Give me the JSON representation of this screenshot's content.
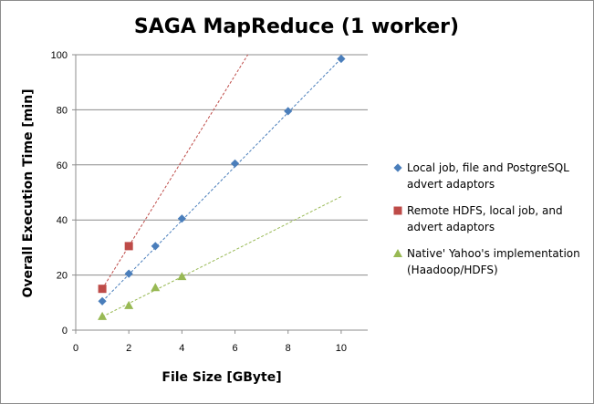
{
  "chart_data": {
    "type": "scatter",
    "title": "SAGA MapReduce (1 worker)",
    "xlabel": "File Size [GByte]",
    "ylabel": "Overall Execution Time [min]",
    "xlim": [
      0,
      11
    ],
    "ylim": [
      0,
      100
    ],
    "xticks": [
      "0",
      "2",
      "4",
      "6",
      "8",
      "10"
    ],
    "yticks": [
      "0",
      "20",
      "40",
      "60",
      "80",
      "100"
    ],
    "grid": "horizontal",
    "legend_position": "right",
    "trendlines": "dashed linear",
    "series": [
      {
        "name": "Local job, file and PostgreSQL advert adaptors",
        "legend_lines": [
          "Local job, file and PostgreSQL",
          "advert adaptors"
        ],
        "marker": "diamond",
        "color": "#4a7ebb",
        "x": [
          1,
          2,
          3,
          4,
          6,
          8,
          10
        ],
        "y": [
          10.5,
          20.5,
          30.5,
          40.5,
          60.5,
          79.5,
          98.5
        ],
        "trend": {
          "slope": 9.8,
          "intercept": 0.6
        }
      },
      {
        "name": "Remote HDFS, local job, and advert adaptors",
        "legend_lines": [
          "Remote HDFS, local job, and",
          "advert adaptors"
        ],
        "marker": "square",
        "color": "#be4b48",
        "x": [
          1,
          2
        ],
        "y": [
          15,
          30.5
        ],
        "trend": {
          "slope": 15.5,
          "intercept": -0.5
        }
      },
      {
        "name": "Native' Yahoo's implementation (Haadoop/HDFS)",
        "legend_lines": [
          "Native' Yahoo's implementation",
          "(Haadoop/HDFS)"
        ],
        "marker": "triangle",
        "color": "#98b954",
        "x": [
          1,
          2,
          3,
          4
        ],
        "y": [
          5,
          9,
          15.5,
          19.5
        ],
        "trend": {
          "slope": 4.85,
          "intercept": 0
        }
      }
    ]
  }
}
